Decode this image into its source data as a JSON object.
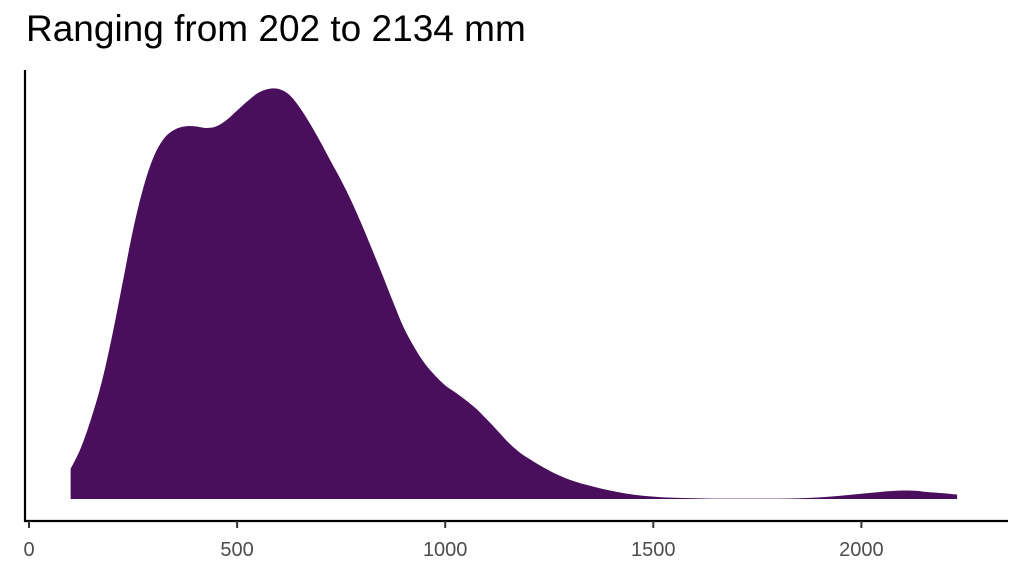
{
  "chart_data": {
    "type": "area",
    "title": "Ranging from 202 to 2134 mm",
    "xlabel": "",
    "ylabel": "",
    "xlim": [
      0,
      2340
    ],
    "ylim": [
      0,
      1.0
    ],
    "x_ticks": [
      0,
      500,
      1000,
      1500,
      2000
    ],
    "x_tick_labels": [
      "0",
      "500",
      "1000",
      "1500",
      "2000"
    ],
    "y_ticks_shown": false,
    "grid": false,
    "fill_color": "#4a0f5c",
    "series": [
      {
        "x": [
          100,
          125,
          150,
          175,
          200,
          225,
          250,
          275,
          300,
          325,
          350,
          375,
          400,
          425,
          450,
          475,
          500,
          525,
          550,
          575,
          600,
          625,
          650,
          675,
          700,
          725,
          750,
          775,
          800,
          825,
          850,
          875,
          900,
          925,
          950,
          975,
          1000,
          1025,
          1050,
          1075,
          1100,
          1125,
          1150,
          1175,
          1200,
          1250,
          1300,
          1350,
          1400,
          1450,
          1500,
          1550,
          1600,
          1650,
          1700,
          1750,
          1800,
          1850,
          1900,
          1950,
          2000,
          2050,
          2100,
          2134,
          2150,
          2200,
          2230
        ],
        "y": [
          0.074,
          0.127,
          0.2,
          0.289,
          0.403,
          0.533,
          0.663,
          0.768,
          0.844,
          0.889,
          0.91,
          0.918,
          0.918,
          0.914,
          0.918,
          0.934,
          0.957,
          0.98,
          1.0,
          1.01,
          1.01,
          0.996,
          0.965,
          0.925,
          0.88,
          0.832,
          0.785,
          0.733,
          0.675,
          0.613,
          0.55,
          0.485,
          0.423,
          0.375,
          0.335,
          0.305,
          0.28,
          0.262,
          0.243,
          0.222,
          0.196,
          0.169,
          0.141,
          0.118,
          0.1,
          0.07,
          0.047,
          0.032,
          0.02,
          0.011,
          0.006,
          0.003,
          0.002,
          0.001,
          0.001,
          0.001,
          0.001,
          0.002,
          0.004,
          0.008,
          0.013,
          0.018,
          0.021,
          0.02,
          0.018,
          0.014,
          0.011
        ]
      }
    ]
  }
}
